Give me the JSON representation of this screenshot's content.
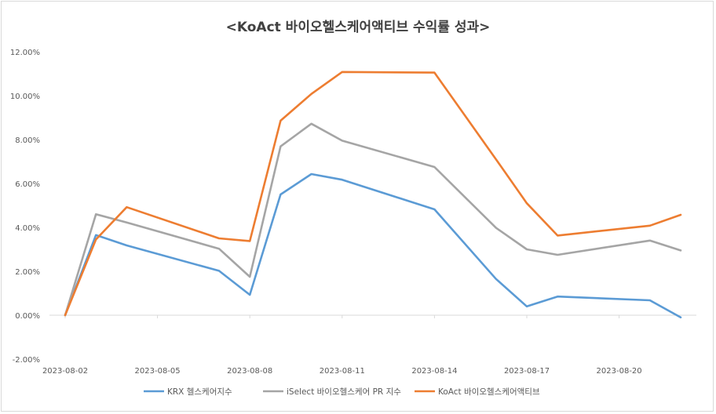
{
  "chart_data": {
    "type": "line",
    "title": "<KoAct 바이오헬스케어액티브 수익률 성과>",
    "xlabel": "",
    "ylabel": "",
    "x": [
      "2023-08-02",
      "2023-08-03",
      "2023-08-04",
      "2023-08-07",
      "2023-08-08",
      "2023-08-09",
      "2023-08-10",
      "2023-08-11",
      "2023-08-14",
      "2023-08-16",
      "2023-08-17",
      "2023-08-18",
      "2023-08-21",
      "2023-08-22"
    ],
    "x_tick_labels": [
      "2023-08-02",
      "2023-08-05",
      "2023-08-08",
      "2023-08-11",
      "2023-08-14",
      "2023-08-17",
      "2023-08-20"
    ],
    "y_tick_labels": [
      "-2.00%",
      "0.00%",
      "2.00%",
      "4.00%",
      "6.00%",
      "8.00%",
      "10.00%",
      "12.00%"
    ],
    "ylim": [
      -2,
      12
    ],
    "grid": false,
    "legend_position": "bottom",
    "series": [
      {
        "name": "KRX 헬스케어지수",
        "color": "#5b9bd5",
        "values": [
          0.0,
          3.65,
          3.18,
          2.02,
          0.93,
          5.5,
          6.43,
          6.17,
          4.82,
          1.65,
          0.4,
          0.85,
          0.68,
          -0.1
        ]
      },
      {
        "name": "iSelect 바이오헬스케어 PR 지수",
        "color": "#a5a5a5",
        "values": [
          0.0,
          4.6,
          4.22,
          3.03,
          1.75,
          7.69,
          8.72,
          7.95,
          6.75,
          3.98,
          3.0,
          2.75,
          3.4,
          2.95
        ]
      },
      {
        "name": "KoAct 바이오헬스케어액티브",
        "color": "#ed7d31",
        "values": [
          0.0,
          3.45,
          4.92,
          3.5,
          3.38,
          8.86,
          10.08,
          11.08,
          11.05,
          7.1,
          5.1,
          3.63,
          4.08,
          4.57
        ]
      }
    ]
  }
}
